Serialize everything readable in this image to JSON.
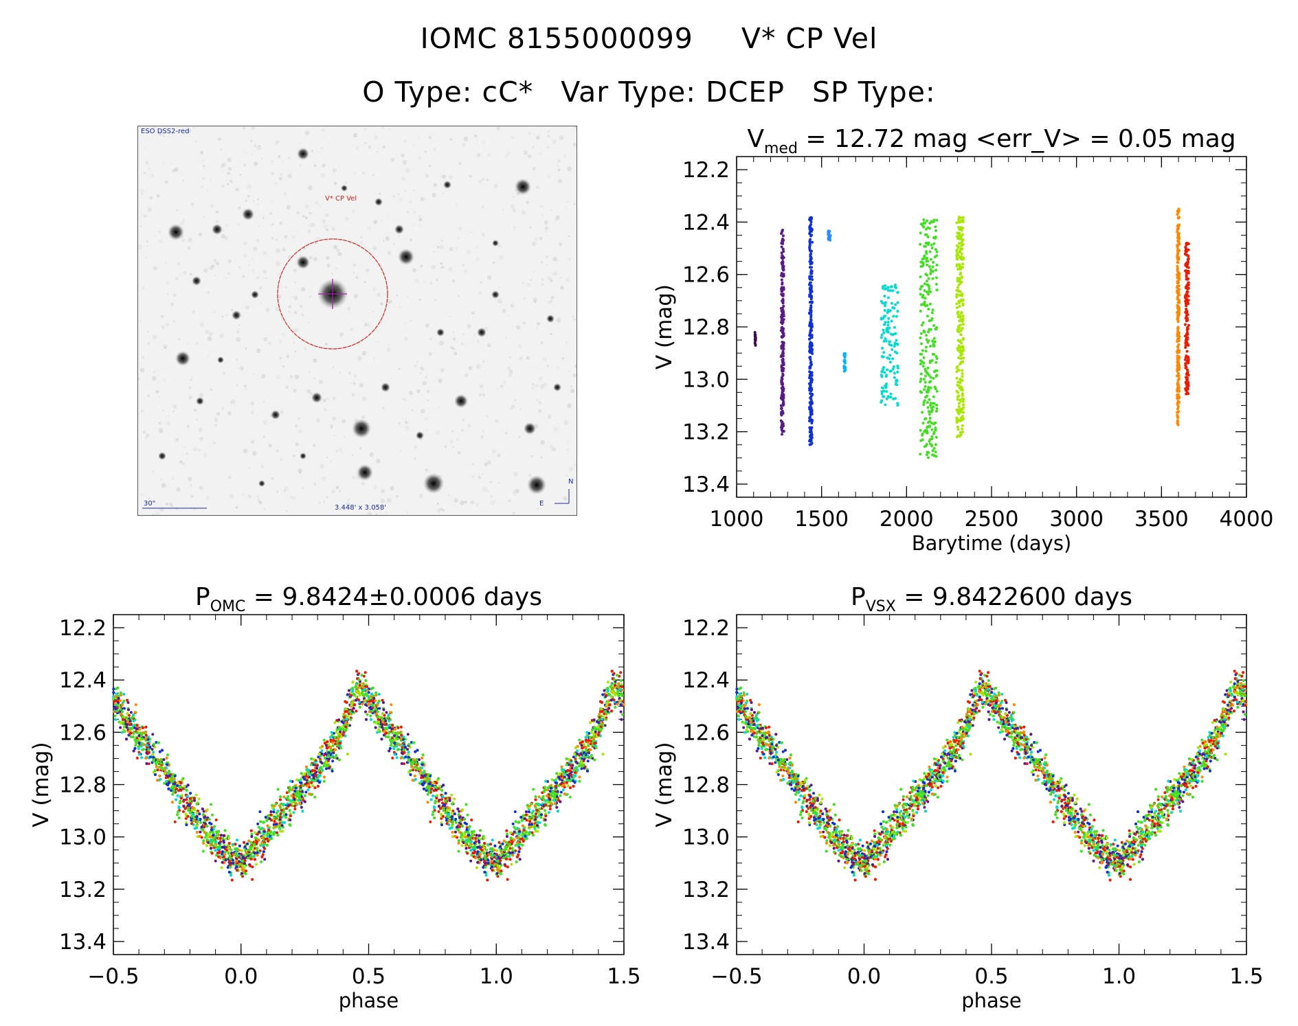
{
  "header": {
    "line1_id": "IOMC 8155000099",
    "line1_name": "V* CP Vel",
    "line2_otype": "O Type: cC*",
    "line2_vartype": "Var Type: DCEP",
    "line2_sptype": "SP Type:"
  },
  "finder": {
    "survey_label": "ESO DSS2-red",
    "target_label": "V* CP Vel",
    "scale_label": "30\"",
    "fov_label": "3.448' x 3.058'",
    "north_label": "N",
    "east_label": "E",
    "colors": {
      "circle": "#cc2222",
      "crosshair": "#aa22aa",
      "labels": "#1a2a9a"
    }
  },
  "chart_data": [
    {
      "id": "lightcurve",
      "type": "scatter",
      "title_main": "V",
      "title_sub": "med",
      "title_rest": " = 12.72 mag <err_V> = 0.05 mag",
      "xlabel": "Barytime (days)",
      "ylabel": "V (mag)",
      "xlim": [
        1000,
        4000
      ],
      "ylim": [
        13.45,
        12.15
      ],
      "xticks": [
        1000,
        1500,
        2000,
        2500,
        3000,
        3500,
        4000
      ],
      "xtick_labels": [
        "1000",
        "1500",
        "2000",
        "2500",
        "3000",
        "3500",
        "4000"
      ],
      "yticks": [
        12.2,
        12.4,
        12.6,
        12.8,
        13.0,
        13.2,
        13.4
      ],
      "ytick_labels": [
        "12.2",
        "12.4",
        "12.6",
        "12.8",
        "13.0",
        "13.2",
        "13.4"
      ],
      "groups": [
        {
          "name": "g1",
          "color": "#3a0a4a",
          "t": [
            1108,
            1112
          ],
          "vmin": 12.82,
          "vmax": 12.88
        },
        {
          "name": "g2",
          "color": "#5a1a8a",
          "t": [
            1262,
            1278
          ],
          "vmin": 12.42,
          "vmax": 13.21
        },
        {
          "name": "g3",
          "color": "#1030d8",
          "t": [
            1428,
            1445
          ],
          "vmin": 12.38,
          "vmax": 13.25
        },
        {
          "name": "g4",
          "color": "#2a8aff",
          "t": [
            1538,
            1552
          ],
          "vmin": 12.43,
          "vmax": 12.47
        },
        {
          "name": "g5",
          "color": "#00b4ff",
          "t": [
            1632,
            1640
          ],
          "vmin": 12.9,
          "vmax": 12.97
        },
        {
          "name": "g6",
          "color": "#00dcd0",
          "t": [
            1850,
            1950
          ],
          "vmin": 12.64,
          "vmax": 13.1
        },
        {
          "name": "g7",
          "color": "#40e020",
          "t": [
            2080,
            2180
          ],
          "vmin": 12.38,
          "vmax": 13.3
        },
        {
          "name": "g8",
          "color": "#a8e800",
          "t": [
            2295,
            2335
          ],
          "vmin": 12.38,
          "vmax": 13.23
        },
        {
          "name": "g9",
          "color": "#ff8800",
          "t": [
            3592,
            3605
          ],
          "vmin": 12.35,
          "vmax": 13.18
        },
        {
          "name": "g10",
          "color": "#ee1a00",
          "t": [
            3640,
            3660
          ],
          "vmin": 12.48,
          "vmax": 13.06
        }
      ]
    },
    {
      "id": "phase_omc",
      "type": "scatter",
      "title_main": "P",
      "title_sub": "OMC",
      "title_rest": " = 9.8424±0.0006 days",
      "xlabel": "phase",
      "ylabel": "V (mag)",
      "xlim": [
        -0.5,
        1.5
      ],
      "ylim": [
        13.45,
        12.15
      ],
      "xticks": [
        -0.5,
        0.0,
        0.5,
        1.0,
        1.5
      ],
      "xtick_labels": [
        "−0.5",
        "0.0",
        "0.5",
        "1.0",
        "1.5"
      ],
      "yticks": [
        12.2,
        12.4,
        12.6,
        12.8,
        13.0,
        13.2,
        13.4
      ],
      "ytick_labels": [
        "12.2",
        "12.4",
        "12.6",
        "12.8",
        "13.0",
        "13.2",
        "13.4"
      ],
      "curve": {
        "phase": [
          0.0,
          0.1,
          0.2,
          0.3,
          0.35,
          0.4,
          0.45,
          0.47,
          0.55,
          0.65,
          0.75,
          0.85,
          0.9,
          0.95,
          1.0
        ],
        "mag": [
          13.1,
          12.98,
          12.86,
          12.74,
          12.68,
          12.58,
          12.45,
          12.43,
          12.55,
          12.68,
          12.82,
          12.95,
          13.02,
          13.08,
          13.1
        ]
      },
      "point_colors": [
        "#5a1a8a",
        "#1030d8",
        "#40e020",
        "#40e020",
        "#40e020",
        "#a8e800",
        "#ff8800",
        "#ee1a00",
        "#ee1a00",
        "#00dcd0"
      ]
    },
    {
      "id": "phase_vsx",
      "type": "scatter",
      "title_main": "P",
      "title_sub": "VSX",
      "title_rest": " = 9.8422600 days",
      "xlabel": "phase",
      "ylabel": "V (mag)",
      "xlim": [
        -0.5,
        1.5
      ],
      "ylim": [
        13.45,
        12.15
      ],
      "xticks": [
        -0.5,
        0.0,
        0.5,
        1.0,
        1.5
      ],
      "xtick_labels": [
        "−0.5",
        "0.0",
        "0.5",
        "1.0",
        "1.5"
      ],
      "yticks": [
        12.2,
        12.4,
        12.6,
        12.8,
        13.0,
        13.2,
        13.4
      ],
      "ytick_labels": [
        "12.2",
        "12.4",
        "12.6",
        "12.8",
        "13.0",
        "13.2",
        "13.4"
      ],
      "curve": {
        "phase": [
          0.0,
          0.1,
          0.2,
          0.3,
          0.35,
          0.4,
          0.45,
          0.47,
          0.55,
          0.65,
          0.75,
          0.85,
          0.9,
          0.95,
          1.0
        ],
        "mag": [
          13.1,
          12.98,
          12.86,
          12.74,
          12.68,
          12.58,
          12.45,
          12.43,
          12.55,
          12.68,
          12.82,
          12.95,
          13.02,
          13.08,
          13.1
        ]
      },
      "point_colors": [
        "#5a1a8a",
        "#1030d8",
        "#40e020",
        "#40e020",
        "#40e020",
        "#a8e800",
        "#ff8800",
        "#ee1a00",
        "#ee1a00",
        "#00dcd0"
      ]
    }
  ]
}
